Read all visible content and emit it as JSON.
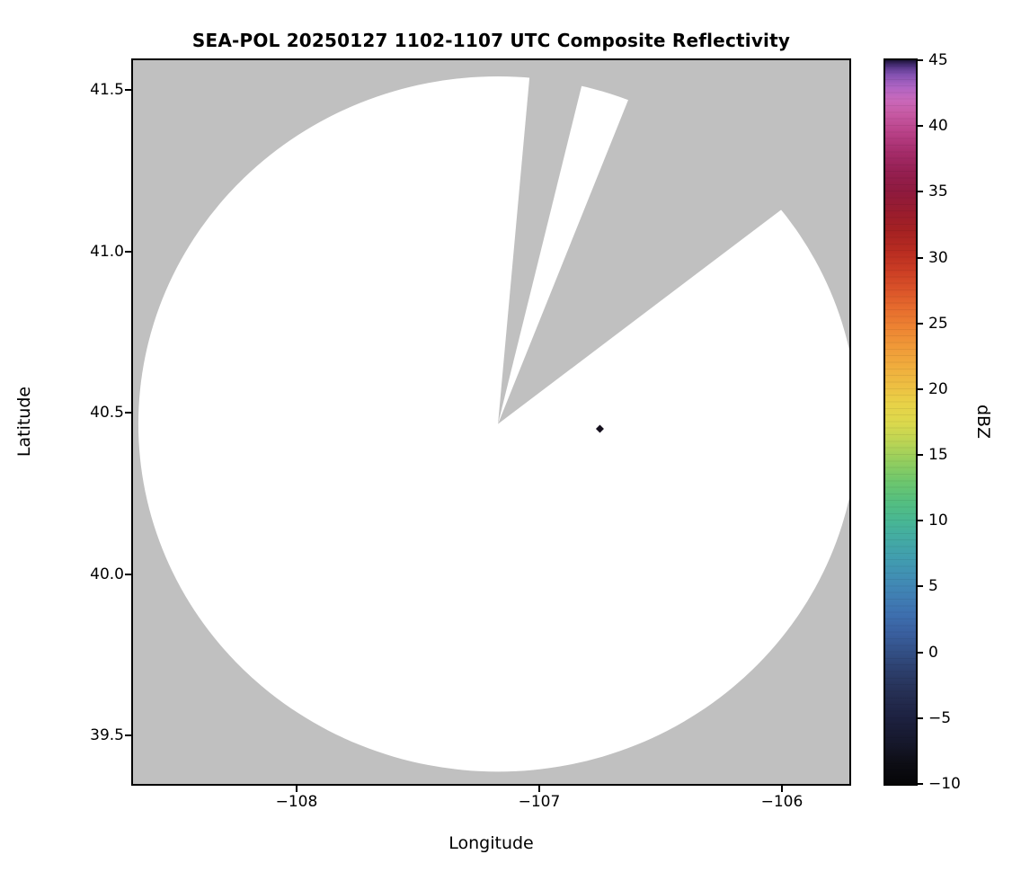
{
  "title": "SEA-POL 20250127 1102-1107 UTC Composite Reflectivity",
  "chart_data": {
    "type": "heatmap",
    "title": "SEA-POL 20250127 1102-1107 UTC Composite Reflectivity",
    "xlabel": "Longitude",
    "ylabel": "Latitude",
    "xlim": [
      -108.674,
      -105.722
    ],
    "ylim": [
      39.35,
      41.592
    ],
    "grid": false,
    "legend_position": "none",
    "x_ticks": [
      {
        "value": -108,
        "label": "−108"
      },
      {
        "value": -107,
        "label": "−107"
      },
      {
        "value": -106,
        "label": "−106"
      }
    ],
    "y_ticks": [
      {
        "value": 41.5,
        "label": "41.5"
      },
      {
        "value": 41.0,
        "label": "41.0"
      },
      {
        "value": 40.5,
        "label": "40.5"
      },
      {
        "value": 40.0,
        "label": "40.0"
      },
      {
        "value": 39.5,
        "label": "39.5"
      }
    ],
    "colorbar": {
      "label": "dBZ",
      "min": -10,
      "max": 45,
      "ticks": [
        {
          "value": 45,
          "label": "45"
        },
        {
          "value": 40,
          "label": "40"
        },
        {
          "value": 35,
          "label": "35"
        },
        {
          "value": 30,
          "label": "30"
        },
        {
          "value": 25,
          "label": "25"
        },
        {
          "value": 20,
          "label": "20"
        },
        {
          "value": 15,
          "label": "15"
        },
        {
          "value": 10,
          "label": "10"
        },
        {
          "value": 5,
          "label": "5"
        },
        {
          "value": 0,
          "label": "0"
        },
        {
          "value": -5,
          "label": "−5"
        },
        {
          "value": -10,
          "label": "−10"
        }
      ],
      "stops": [
        {
          "value": -10,
          "color": "#060608"
        },
        {
          "value": -8.5,
          "color": "#0d0d14"
        },
        {
          "value": -7,
          "color": "#15172a"
        },
        {
          "value": -5,
          "color": "#1d2140"
        },
        {
          "value": -3,
          "color": "#263055"
        },
        {
          "value": -1,
          "color": "#2e4373"
        },
        {
          "value": 0,
          "color": "#335086"
        },
        {
          "value": 1.5,
          "color": "#3a60a0"
        },
        {
          "value": 3,
          "color": "#3e71b0"
        },
        {
          "value": 5,
          "color": "#4187b5"
        },
        {
          "value": 7,
          "color": "#419cb0"
        },
        {
          "value": 9,
          "color": "#44aea0"
        },
        {
          "value": 10,
          "color": "#48b793"
        },
        {
          "value": 11.5,
          "color": "#55bf7f"
        },
        {
          "value": 13,
          "color": "#6ec76d"
        },
        {
          "value": 14.5,
          "color": "#93ce5e"
        },
        {
          "value": 16,
          "color": "#bcd554"
        },
        {
          "value": 17.5,
          "color": "#ddd94c"
        },
        {
          "value": 19,
          "color": "#e9d147"
        },
        {
          "value": 20,
          "color": "#edc243"
        },
        {
          "value": 21.5,
          "color": "#f0b03e"
        },
        {
          "value": 23,
          "color": "#f09c39"
        },
        {
          "value": 24.5,
          "color": "#ee8633"
        },
        {
          "value": 26,
          "color": "#e76e2e"
        },
        {
          "value": 27.5,
          "color": "#db5429"
        },
        {
          "value": 29,
          "color": "#cb3d24"
        },
        {
          "value": 30.5,
          "color": "#b82c21"
        },
        {
          "value": 32,
          "color": "#a52122"
        },
        {
          "value": 33.5,
          "color": "#991c2e"
        },
        {
          "value": 35,
          "color": "#8f1a3e"
        },
        {
          "value": 36.5,
          "color": "#951f51"
        },
        {
          "value": 38,
          "color": "#a52c6a"
        },
        {
          "value": 39.5,
          "color": "#b94188"
        },
        {
          "value": 41,
          "color": "#c85ba5"
        },
        {
          "value": 42,
          "color": "#c969bb"
        },
        {
          "value": 43,
          "color": "#ae64c4"
        },
        {
          "value": 44,
          "color": "#7e4fae"
        },
        {
          "value": 44.6,
          "color": "#4a2f7a"
        },
        {
          "value": 45,
          "color": "#1c1338"
        }
      ]
    },
    "radar": {
      "center_lon": -107.17,
      "center_lat": 40.465,
      "radius_lon_deg": 1.482,
      "radius_lat_deg": 1.077,
      "coverage_color": "#ffffff",
      "background_color": "#c0c0c0",
      "missing_sectors_azimuth_deg": [
        [
          5.2,
          13.9
        ],
        [
          21.9,
          52.9
        ]
      ]
    },
    "points": [
      {
        "lon": -106.75,
        "lat": 40.45,
        "marker": "diamond",
        "color": "#15101d"
      }
    ]
  }
}
